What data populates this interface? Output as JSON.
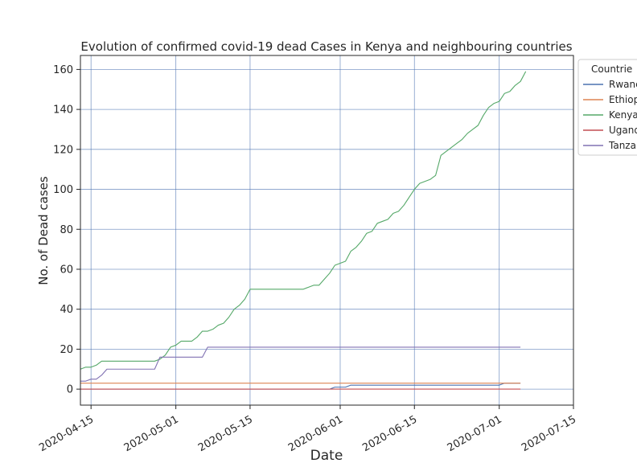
{
  "chart_data": {
    "type": "line",
    "title": "Evolution of confirmed covid-19 dead Cases in Kenya and neighbouring countries",
    "xlabel": "Date",
    "ylabel": "No. of Dead cases",
    "x_start": "2020-04-13",
    "xlim": [
      "2020-04-13",
      "2020-07-15"
    ],
    "ylim": [
      -8,
      167
    ],
    "x_ticks": [
      "2020-04-15",
      "2020-05-01",
      "2020-05-15",
      "2020-06-01",
      "2020-06-15",
      "2020-07-01",
      "2020-07-15"
    ],
    "y_ticks": [
      0,
      20,
      40,
      60,
      80,
      100,
      120,
      140,
      160
    ],
    "grid": true,
    "legend_title": "Countrie",
    "legend_position": "outside-top-right",
    "series": [
      {
        "name": "Rwanda",
        "legend_label": "Rwanc",
        "color": "#4c72b0",
        "values": [
          0,
          0,
          0,
          0,
          0,
          0,
          0,
          0,
          0,
          0,
          0,
          0,
          0,
          0,
          0,
          0,
          0,
          0,
          0,
          0,
          0,
          0,
          0,
          0,
          0,
          0,
          0,
          0,
          0,
          0,
          0,
          0,
          0,
          0,
          0,
          0,
          0,
          0,
          0,
          0,
          0,
          0,
          0,
          0,
          0,
          0,
          0,
          0,
          1,
          1,
          1,
          2,
          2,
          2,
          2,
          2,
          2,
          2,
          2,
          2,
          2,
          2,
          2,
          2,
          2,
          2,
          2,
          2,
          2,
          2,
          2,
          2,
          2,
          2,
          2,
          2,
          2,
          2,
          2,
          2,
          3,
          3,
          3,
          3
        ]
      },
      {
        "name": "Ethiopia",
        "legend_label": "Ethiop",
        "color": "#dd8452",
        "values": [
          3,
          3,
          3,
          3,
          3,
          3,
          3,
          3,
          3,
          3,
          3,
          3,
          3,
          3,
          3,
          3,
          3,
          3,
          3,
          3,
          3,
          3,
          3,
          3,
          3,
          3,
          3,
          3,
          3,
          3,
          3,
          3,
          3,
          3,
          3,
          3,
          3,
          3,
          3,
          3,
          3,
          3,
          3,
          3,
          3,
          3,
          3,
          3,
          3,
          3,
          3,
          3,
          3,
          3,
          3,
          3,
          3,
          3,
          3,
          3,
          3,
          3,
          3,
          3,
          3,
          3,
          3,
          3,
          3,
          3,
          3,
          3,
          3,
          3,
          3,
          3,
          3,
          3,
          3,
          3,
          3,
          3,
          3,
          3
        ]
      },
      {
        "name": "Kenya",
        "legend_label": "Kenya",
        "color": "#55a868",
        "values": [
          10,
          11,
          11,
          12,
          14,
          14,
          14,
          14,
          14,
          14,
          14,
          14,
          14,
          14,
          14,
          15,
          17,
          21,
          22,
          24,
          24,
          24,
          26,
          29,
          29,
          30,
          32,
          33,
          36,
          40,
          42,
          45,
          50,
          50,
          50,
          50,
          50,
          50,
          50,
          50,
          50,
          50,
          50,
          51,
          52,
          52,
          55,
          58,
          62,
          63,
          64,
          69,
          71,
          74,
          78,
          79,
          83,
          84,
          85,
          88,
          89,
          92,
          96,
          100,
          103,
          104,
          105,
          107,
          117,
          119,
          121,
          123,
          125,
          128,
          130,
          132,
          137,
          141,
          143,
          144,
          148,
          149,
          152,
          154,
          159
        ]
      },
      {
        "name": "Uganda",
        "legend_label": "Ugand",
        "color": "#c44e52",
        "values": [
          0,
          0,
          0,
          0,
          0,
          0,
          0,
          0,
          0,
          0,
          0,
          0,
          0,
          0,
          0,
          0,
          0,
          0,
          0,
          0,
          0,
          0,
          0,
          0,
          0,
          0,
          0,
          0,
          0,
          0,
          0,
          0,
          0,
          0,
          0,
          0,
          0,
          0,
          0,
          0,
          0,
          0,
          0,
          0,
          0,
          0,
          0,
          0,
          0,
          0,
          0,
          0,
          0,
          0,
          0,
          0,
          0,
          0,
          0,
          0,
          0,
          0,
          0,
          0,
          0,
          0,
          0,
          0,
          0,
          0,
          0,
          0,
          0,
          0,
          0,
          0,
          0,
          0,
          0,
          0,
          0,
          0,
          0,
          0
        ]
      },
      {
        "name": "Tanzania",
        "legend_label": "Tanza",
        "color": "#8172b3",
        "values": [
          4,
          4,
          5,
          5,
          7,
          10,
          10,
          10,
          10,
          10,
          10,
          10,
          10,
          10,
          10,
          16,
          16,
          16,
          16,
          16,
          16,
          16,
          16,
          16,
          21,
          21,
          21,
          21,
          21,
          21,
          21,
          21,
          21,
          21,
          21,
          21,
          21,
          21,
          21,
          21,
          21,
          21,
          21,
          21,
          21,
          21,
          21,
          21,
          21,
          21,
          21,
          21,
          21,
          21,
          21,
          21,
          21,
          21,
          21,
          21,
          21,
          21,
          21,
          21,
          21,
          21,
          21,
          21,
          21,
          21,
          21,
          21,
          21,
          21,
          21,
          21,
          21,
          21,
          21,
          21,
          21,
          21,
          21,
          21
        ]
      }
    ]
  }
}
